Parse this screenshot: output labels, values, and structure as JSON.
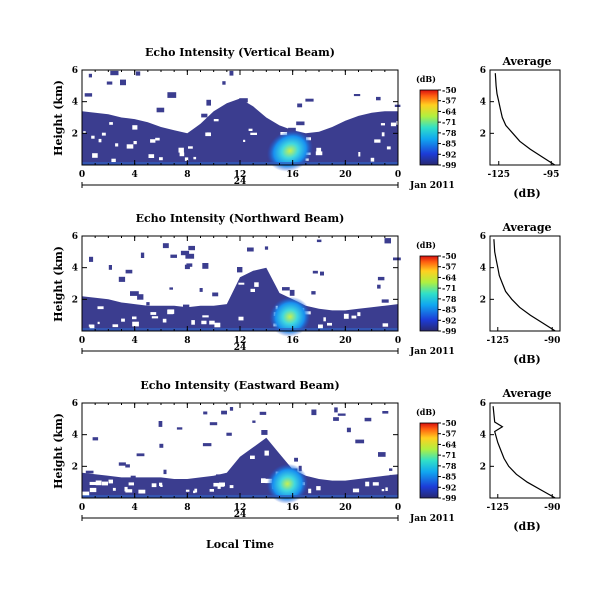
{
  "figure": {
    "x_axis_label": "Local Time",
    "date_label": "Jan 2011",
    "colorbar_unit": "(dB)",
    "colorbar_ticks": [
      "-50",
      "-57",
      "-64",
      "-71",
      "-78",
      "-85",
      "-92",
      "-99"
    ],
    "background_color": "#3b3d8f",
    "no_data_color": "#ffffff"
  },
  "chart_data": [
    {
      "type": "heatmap",
      "title": "Echo Intensity (Vertical Beam)",
      "ylabel": "Height (km)",
      "x_ticks": [
        "0",
        "4",
        "8",
        "12",
        "16",
        "20",
        "0"
      ],
      "y_ticks": [
        "2",
        "4",
        "6"
      ],
      "xlim": [
        0,
        24
      ],
      "ylim": [
        0,
        6
      ],
      "date_tick": "24",
      "color_range_db": [
        -99,
        -50
      ],
      "echo_layer_top_km": [
        3.4,
        3.3,
        3.2,
        3.0,
        2.9,
        2.7,
        2.4,
        2.2,
        2.0,
        2.6,
        3.4,
        3.9,
        4.2,
        3.7,
        3.0,
        2.5,
        2.2,
        2.0,
        2.1,
        2.4,
        2.8,
        3.1,
        3.3,
        3.4,
        3.4
      ],
      "enhanced_echo": {
        "time_range_h": [
          14.5,
          18.5
        ],
        "peak_time_h": 15.8,
        "max_height_km": 2.0,
        "peak_db": -71
      }
    },
    {
      "type": "line",
      "title": "Average",
      "xlabel": "(dB)",
      "x_ticks": [
        "-125",
        "-95"
      ],
      "y_ticks": [
        "2",
        "4",
        "6"
      ],
      "xlim": [
        -130,
        -90
      ],
      "ylim": [
        0,
        6
      ],
      "profile": {
        "x": [
          -93,
          -100,
          -107,
          -113,
          -117,
          -121,
          -123,
          -124,
          -125,
          -126,
          -126.5,
          -127
        ],
        "y": [
          0,
          0.5,
          1.0,
          1.5,
          2.0,
          2.5,
          3.0,
          3.5,
          4.0,
          4.5,
          5.0,
          5.8
        ]
      }
    },
    {
      "type": "heatmap",
      "title": "Echo Intensity (Northward Beam)",
      "ylabel": "Height (km)",
      "x_ticks": [
        "0",
        "4",
        "8",
        "12",
        "16",
        "20",
        "0"
      ],
      "y_ticks": [
        "2",
        "4",
        "6"
      ],
      "xlim": [
        0,
        24
      ],
      "ylim": [
        0,
        6
      ],
      "date_tick": "24",
      "color_range_db": [
        -99,
        -50
      ],
      "echo_layer_top_km": [
        2.2,
        2.1,
        2.0,
        1.8,
        1.7,
        1.6,
        1.6,
        1.6,
        1.5,
        1.6,
        1.6,
        1.7,
        3.4,
        3.8,
        4.0,
        2.4,
        2.0,
        1.6,
        1.4,
        1.3,
        1.3,
        1.4,
        1.5,
        1.6,
        1.7
      ],
      "enhanced_echo": {
        "time_range_h": [
          14.5,
          18.0
        ],
        "peak_time_h": 15.8,
        "max_height_km": 2.0,
        "peak_db": -71
      }
    },
    {
      "type": "line",
      "title": "Average",
      "xlabel": "(dB)",
      "x_ticks": [
        "-125",
        "-90"
      ],
      "y_ticks": [
        "2",
        "4",
        "6"
      ],
      "xlim": [
        -130,
        -85
      ],
      "ylim": [
        0,
        6
      ],
      "profile": {
        "x": [
          -88,
          -96,
          -104,
          -111,
          -116,
          -120,
          -122,
          -124,
          -125,
          -126,
          -127,
          -127.5
        ],
        "y": [
          0,
          0.5,
          1.0,
          1.5,
          2.0,
          2.5,
          3.0,
          3.5,
          4.0,
          4.5,
          5.0,
          5.8
        ]
      }
    },
    {
      "type": "heatmap",
      "title": "Echo Intensity (Eastward Beam)",
      "ylabel": "Height (km)",
      "x_ticks": [
        "0",
        "4",
        "8",
        "12",
        "16",
        "20",
        "0"
      ],
      "y_ticks": [
        "2",
        "4",
        "6"
      ],
      "xlim": [
        0,
        24
      ],
      "ylim": [
        0,
        6
      ],
      "date_tick": "24",
      "color_range_db": [
        -99,
        -50
      ],
      "echo_layer_top_km": [
        1.6,
        1.5,
        1.4,
        1.3,
        1.3,
        1.3,
        1.3,
        1.2,
        1.2,
        1.3,
        1.4,
        1.6,
        2.6,
        3.2,
        3.8,
        2.8,
        1.8,
        1.4,
        1.2,
        1.1,
        1.1,
        1.2,
        1.3,
        1.4,
        1.5
      ],
      "enhanced_echo": {
        "time_range_h": [
          14.5,
          18.0
        ],
        "peak_time_h": 15.6,
        "max_height_km": 2.0,
        "peak_db": -71
      }
    },
    {
      "type": "line",
      "title": "Average",
      "xlabel": "(dB)",
      "x_ticks": [
        "-125",
        "-90"
      ],
      "y_ticks": [
        "2",
        "4",
        "6"
      ],
      "xlim": [
        -130,
        -85
      ],
      "ylim": [
        0,
        6
      ],
      "profile": {
        "x": [
          -88,
          -97,
          -106,
          -113,
          -118,
          -121,
          -123,
          -125,
          -127,
          -122,
          -127,
          -128
        ],
        "y": [
          0,
          0.5,
          1.0,
          1.5,
          2.0,
          2.5,
          3.0,
          3.5,
          4.2,
          4.5,
          4.8,
          5.8
        ]
      }
    }
  ]
}
